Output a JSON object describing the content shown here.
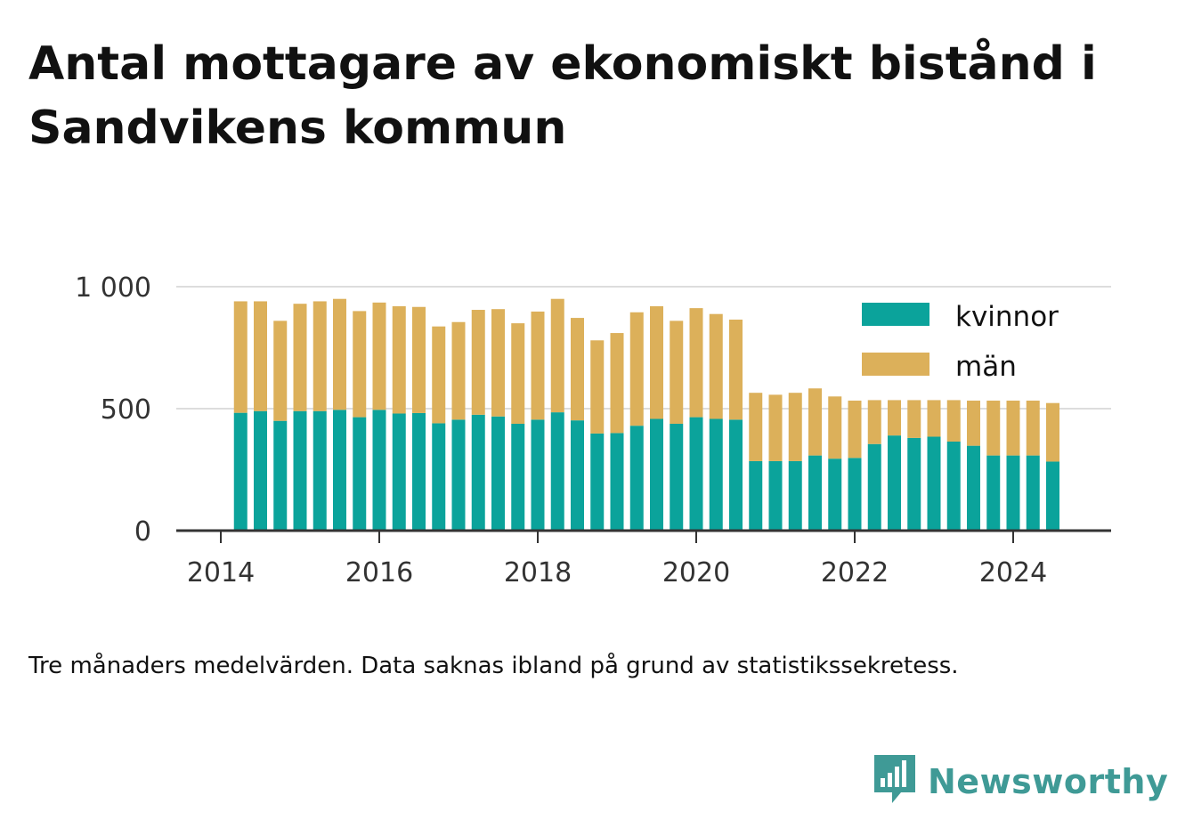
{
  "title": "Antal mottagare av ekonomiskt bistånd i Sandvikens kommun",
  "caption": "Tre månaders medelvärden. Data saknas ibland på grund av statistikssekretess.",
  "brand": {
    "name": "Newsworthy",
    "icon": "bar-chart-speech-bubble-icon"
  },
  "colors": {
    "kvinnor": "#0ba39b",
    "man": "#dcb05a",
    "grid": "#dddddd",
    "axis": "#333333",
    "brand": "#3f9a96"
  },
  "chart_data": {
    "type": "bar",
    "stacked": true,
    "xaxis_ticks": [
      "2014",
      "2016",
      "2018",
      "2020",
      "2022",
      "2024"
    ],
    "yaxis_ticks": [
      "0",
      "500",
      "1 000"
    ],
    "ylim": [
      0,
      1000
    ],
    "grid": true,
    "legend_position": "top-right",
    "x": [
      2014.25,
      2014.5,
      2014.75,
      2015.0,
      2015.25,
      2015.5,
      2015.75,
      2016.0,
      2016.25,
      2016.5,
      2016.75,
      2017.0,
      2017.25,
      2017.5,
      2017.75,
      2018.0,
      2018.25,
      2018.5,
      2018.75,
      2019.0,
      2019.25,
      2019.5,
      2019.75,
      2020.0,
      2020.25,
      2020.5,
      2020.75,
      2021.0,
      2021.25,
      2021.5,
      2021.75,
      2022.0,
      2022.25,
      2022.5,
      2022.75,
      2023.0,
      2023.25,
      2023.5,
      2023.75,
      2024.0,
      2024.25,
      2024.5
    ],
    "series": [
      {
        "name": "kvinnor",
        "values": [
          483,
          490,
          450,
          490,
          490,
          495,
          465,
          495,
          480,
          482,
          440,
          455,
          475,
          468,
          438,
          455,
          485,
          452,
          398,
          400,
          430,
          458,
          438,
          465,
          458,
          455,
          285,
          285,
          285,
          308,
          295,
          298,
          355,
          390,
          380,
          385,
          365,
          348,
          308,
          308,
          308,
          283
        ]
      },
      {
        "name": "män",
        "values": [
          457,
          450,
          410,
          440,
          450,
          455,
          435,
          440,
          440,
          435,
          397,
          400,
          430,
          440,
          412,
          443,
          465,
          420,
          382,
          410,
          465,
          462,
          422,
          447,
          430,
          410,
          280,
          272,
          280,
          275,
          255,
          235,
          180,
          145,
          155,
          150,
          170,
          185,
          225,
          225,
          225,
          240
        ]
      }
    ]
  }
}
